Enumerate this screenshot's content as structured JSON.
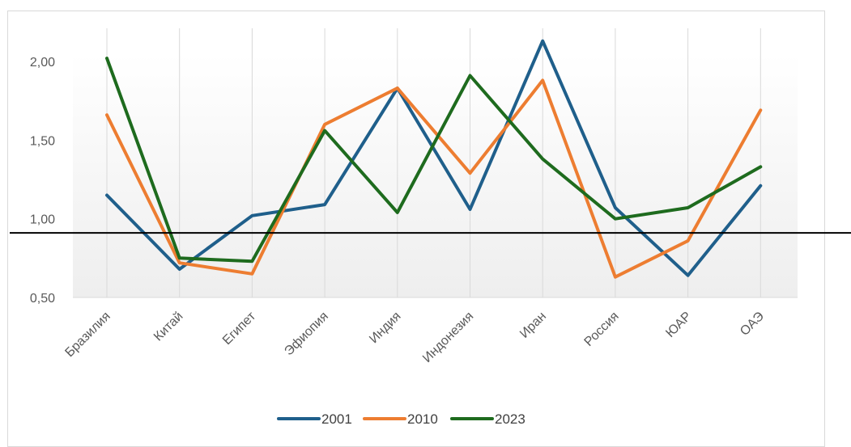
{
  "chart_data": {
    "type": "line",
    "title": "",
    "xlabel": "",
    "ylabel": "",
    "categories": [
      "Бразилия",
      "Китай",
      "Египет",
      "Эфиопия",
      "Индия",
      "Индонезия",
      "Иран",
      "Россия",
      "ЮАР",
      "ОАЭ"
    ],
    "ylim": [
      0.5,
      2.0
    ],
    "yticks": [
      "0,50",
      "1,00",
      "1,50",
      "2,00"
    ],
    "grid": false,
    "legend_position": "bottom",
    "reference_line": 0.91,
    "series": [
      {
        "name": "2001",
        "color": "#1f5f8b",
        "values": [
          1.15,
          0.68,
          1.02,
          1.09,
          1.83,
          1.06,
          2.13,
          1.07,
          0.64,
          1.21
        ]
      },
      {
        "name": "2010",
        "color": "#ed7d31",
        "values": [
          1.66,
          0.72,
          0.65,
          1.6,
          1.83,
          1.29,
          1.88,
          0.63,
          0.86,
          1.69
        ]
      },
      {
        "name": "2023",
        "color": "#1e6b1e",
        "values": [
          2.02,
          0.75,
          0.73,
          1.56,
          1.04,
          1.91,
          1.38,
          1.0,
          1.07,
          1.33
        ]
      }
    ]
  }
}
